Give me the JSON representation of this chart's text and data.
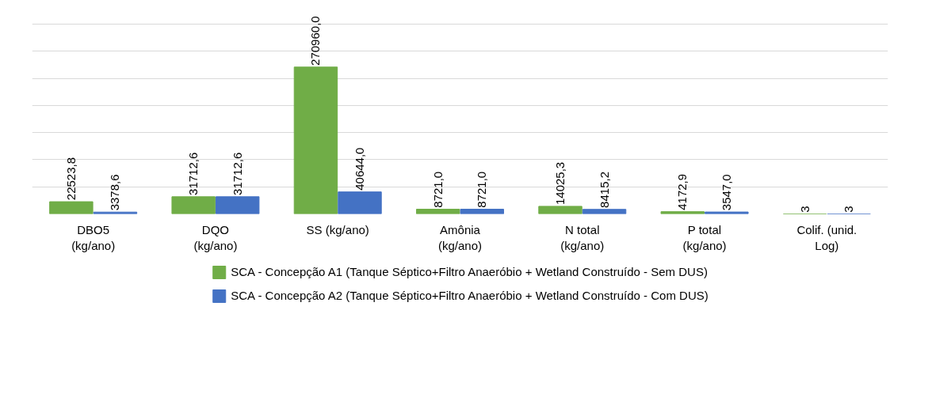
{
  "chart_data": {
    "type": "bar",
    "categories": [
      "DBO5\n(kg/ano)",
      "DQO\n(kg/ano)",
      "SS (kg/ano)",
      "Amônia\n(kg/ano)",
      "N total\n(kg/ano)",
      "P total\n(kg/ano)",
      "Colif. (unid.\nLog)"
    ],
    "series": [
      {
        "name": "SCA - Concepção A1 (Tanque Séptico+Filtro Anaeróbio + Wetland Construído - Sem DUS)",
        "color": "#70ad47",
        "values": [
          22523.8,
          31712.6,
          270960.0,
          8721.0,
          14025.3,
          4172.9,
          3
        ],
        "value_labels": [
          "22523,8",
          "31712,6",
          "270960,0",
          "8721,0",
          "14025,3",
          "4172,9",
          "3"
        ]
      },
      {
        "name": "SCA - Concepção A2 (Tanque Séptico+Filtro Anaeróbio + Wetland Construído - Com DUS)",
        "color": "#4472c4",
        "values": [
          3378.6,
          31712.6,
          40644.0,
          8721.0,
          8415.2,
          3547.0,
          3
        ],
        "value_labels": [
          "3378,6",
          "31712,6",
          "40644,0",
          "8721,0",
          "8415,2",
          "3547,0",
          "3"
        ]
      }
    ],
    "grid": "y",
    "legend": "bottom",
    "tick_labels": "x"
  }
}
